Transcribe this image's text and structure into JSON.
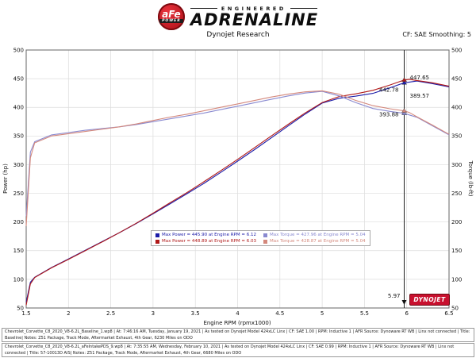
{
  "header": {
    "brand_badge": {
      "line1": "aFe",
      "line2": "POWER"
    },
    "brand_top": "ENGINEERED",
    "brand_main": "ADRENALINE",
    "chart_source": "Dynojet Research",
    "smoothing": "CF: SAE Smoothing: 5"
  },
  "chart_data": {
    "type": "line",
    "title": "Dynojet Research",
    "xlabel": "Engine RPM (rpmx1000)",
    "ylabel_left": "Power (hp)",
    "ylabel_right": "Torque (lb-ft)",
    "xlim": [
      1.5,
      6.5
    ],
    "ylim": [
      50,
      500
    ],
    "grid": true,
    "x_ticks": [
      1.5,
      2.0,
      2.5,
      3.0,
      3.5,
      4.0,
      4.5,
      5.0,
      5.5,
      6.0,
      6.5
    ],
    "x_tick_labels": [
      "1.5",
      "2",
      "2.5",
      "3",
      "3.5",
      "4",
      "4.5",
      "5",
      "5.5",
      "6",
      "6.5"
    ],
    "y_ticks": [
      50,
      100,
      150,
      200,
      250,
      300,
      350,
      400,
      450,
      500
    ],
    "x": [
      1.5,
      1.55,
      1.6,
      1.8,
      2.0,
      2.2,
      2.4,
      2.6,
      2.8,
      3.0,
      3.2,
      3.4,
      3.6,
      3.8,
      4.0,
      4.2,
      4.4,
      4.6,
      4.8,
      5.0,
      5.2,
      5.4,
      5.6,
      5.8,
      5.97,
      6.03,
      6.12,
      6.3,
      6.5
    ],
    "series": [
      {
        "name": "baseline-power",
        "unit": "hp",
        "color": "#1c1ca8",
        "values": [
          60,
          95,
          103.6,
          120.6,
          135.6,
          150.8,
          165.9,
          181.2,
          197.3,
          214.2,
          231.5,
          249.2,
          267.3,
          286.5,
          306.2,
          326.3,
          346.8,
          367.9,
          388.4,
          407.4,
          415.8,
          419.5,
          424.4,
          434.0,
          442.8,
          444.0,
          445.9,
          441.4,
          435.6
        ]
      },
      {
        "name": "intake-power",
        "unit": "hp",
        "color": "#b01818",
        "values": [
          55,
          92,
          103.0,
          120.0,
          134.8,
          150.0,
          165.4,
          181.2,
          197.8,
          215.3,
          233.4,
          251.2,
          270.1,
          289.4,
          309.2,
          329.5,
          350.2,
          370.5,
          390.3,
          408.3,
          418.8,
          423.6,
          429.7,
          439.0,
          447.7,
          448.9,
          446.9,
          442.9,
          436.9
        ]
      },
      {
        "name": "baseline-torque",
        "unit": "lb-ft",
        "color": "#8a8ad0",
        "values": [
          210,
          322,
          340,
          352,
          356,
          360,
          363,
          366,
          370,
          375,
          380,
          385,
          390,
          396,
          402,
          408,
          414,
          420,
          425,
          427.9,
          420,
          408,
          398,
          393,
          389.6,
          386.7,
          382.7,
          368,
          352
        ]
      },
      {
        "name": "intake-torque",
        "unit": "lb-ft",
        "color": "#d4887c",
        "values": [
          193,
          312,
          338,
          350,
          354,
          358,
          362,
          366,
          371,
          377,
          383,
          388,
          394,
          400,
          406,
          412,
          418,
          423,
          427,
          428.9,
          423,
          412,
          403,
          397.5,
          393.9,
          391.0,
          383.5,
          369.3,
          353
        ]
      }
    ],
    "cursor": {
      "rpm": 5.97,
      "label": "5.97"
    },
    "annotations": [
      {
        "text": "442.78",
        "color": "#1c1ca8",
        "rpm": 5.97,
        "value": 442.78,
        "side": "left",
        "dy": 11
      },
      {
        "text": "447.65",
        "color": "#b01818",
        "rpm": 5.97,
        "value": 447.65,
        "side": "right",
        "dy": -1
      },
      {
        "text": "389.57",
        "color": "#8a8ad0",
        "rpm": 5.97,
        "value": 389.57,
        "side": "right",
        "dy": -20
      },
      {
        "text": "393.88",
        "color": "#d4887c",
        "rpm": 5.97,
        "value": 393.88,
        "side": "left",
        "dy": 7
      }
    ],
    "legend": [
      {
        "label": "Max Power = 445.90 at Engine RPM = 6.12",
        "color": "#1c1ca8"
      },
      {
        "label": "Max Torque = 427.96 at Engine RPM = 5.04",
        "color": "#8a8ad0"
      },
      {
        "label": "Max Power = 448.89 at Engine RPM = 6.03",
        "color": "#b01818"
      },
      {
        "label": "Max Torque = 428.87 at Engine RPM = 5.04",
        "color": "#d4887c"
      }
    ],
    "legend_position": "bottom-center",
    "watermark": "DYNOJET"
  },
  "footer": {
    "rows": [
      {
        "text": "Chevrolet_Corvette_C8_2020_V8-6.2L_Baseline_1.wp8 | At: 7:46:16 AM, Tuesday, January 19, 2021 | As tested on Dynojet Model 424xLC Linx | CF: SAE 1.00 | RPM: Inductive 1 | AFR Source: Dynoware RT WB | Linx not connected | Title: Baseline| Notes: Z51 Package, Track Mode, Aftermarket Exhaust, 4th Gear, 6230 Miles on ODO"
      },
      {
        "text": "Chevrolet_Corvette_C8_2020_V8-6.2L_aFeIntakePDS_9.wp8 | At: 7:35:55 AM, Wednesday, February 10, 2021 | As tested on Dynojet Model 424xLC Linx | CF: SAE 0.99 | RPM: Inductive 1 | AFR Source: Dynoware RT WB | Linx not connected | Title: 57-10013D AIS| Notes: Z51 Package, Track Mode, Aftermarket Exhaust, 4th Gear, 6680 Miles on ODO"
      }
    ]
  }
}
